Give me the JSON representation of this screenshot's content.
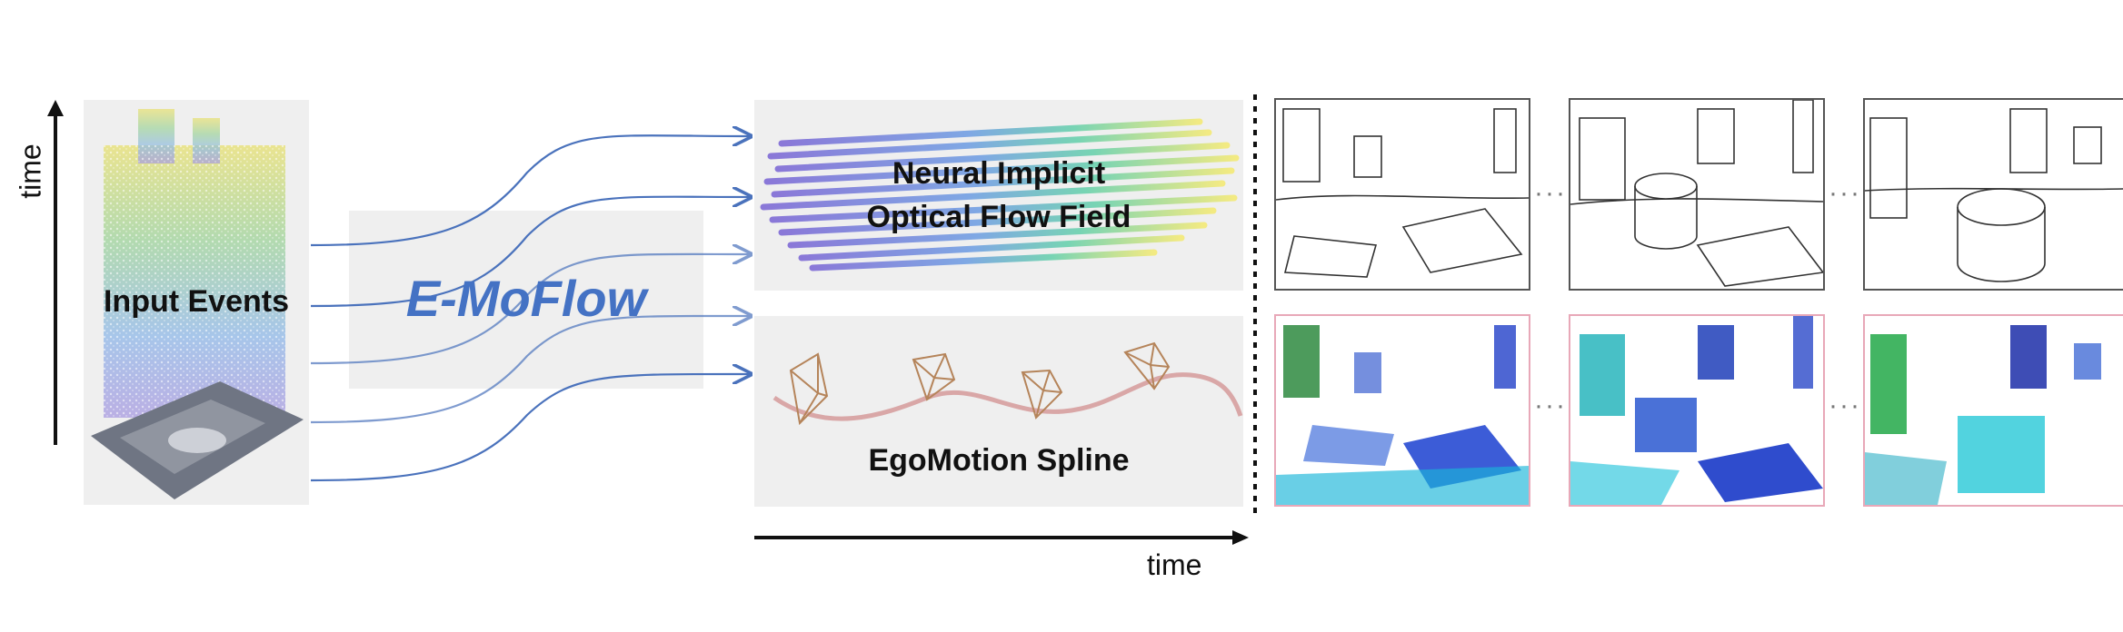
{
  "input_label": "Input Events",
  "axis_time_vertical": "time",
  "axis_time_horizontal": "time",
  "method_name": "E-MoFlow",
  "flow_field_label_line1": "Neural Implicit",
  "flow_field_label_line2": "Optical Flow Field",
  "egomotion_label": "EgoMotion Spline",
  "ellipsis": "···",
  "colors": {
    "method_blue": "#4472c4",
    "arrow_blue": "#4a72bc",
    "panel_gray": "#efefef",
    "spline_pink": "#d9a7a7",
    "camera_brown": "#b5845a",
    "flow_frame_border": "#e8a8b8",
    "gray_frame_border": "#555555"
  },
  "icons": [
    "event-cloud-icon",
    "flow-streaks-icon",
    "camera-frustum-icon"
  ]
}
